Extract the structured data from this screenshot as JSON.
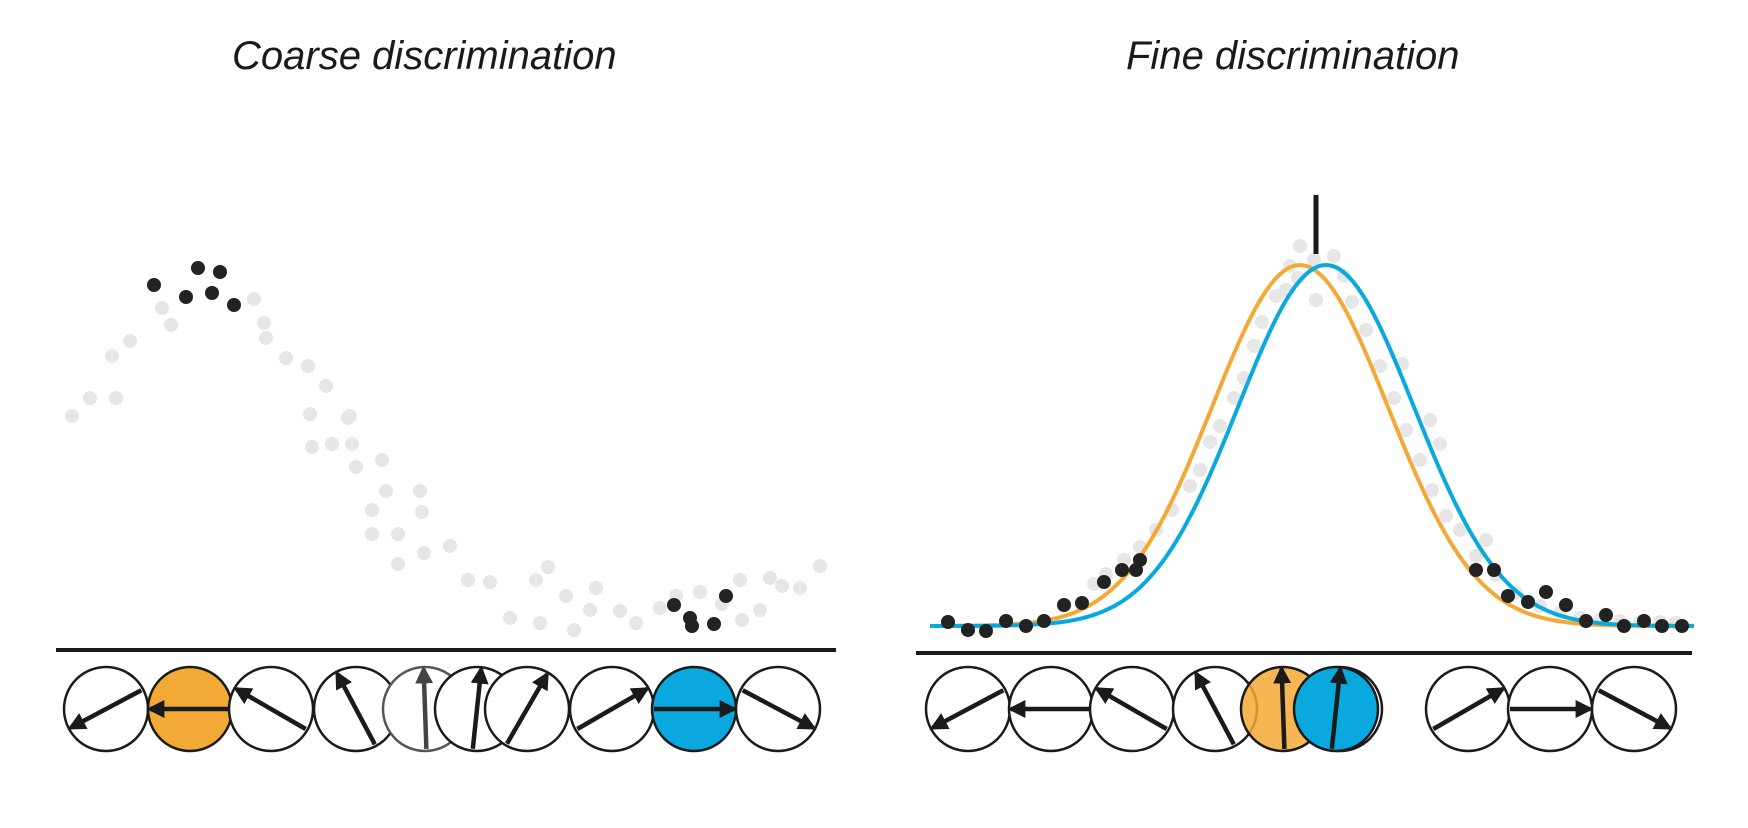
{
  "panels": [
    {
      "id": "coarse",
      "title": "Coarse discrimination",
      "highlight": {
        "first": "#F3A935",
        "second": "#09A9DF"
      }
    },
    {
      "id": "fine",
      "title": "Fine discrimination",
      "highlight": {
        "first": "#F3A935",
        "second": "#09A9DF"
      }
    }
  ],
  "colors": {
    "faint_dot": "#e6e6e6",
    "dark_dot": "#222222",
    "line": "#1a1a1a",
    "orange": "#F3A935",
    "blue": "#09A9DF"
  },
  "icons": [
    "direction-arrow-icon"
  ]
}
